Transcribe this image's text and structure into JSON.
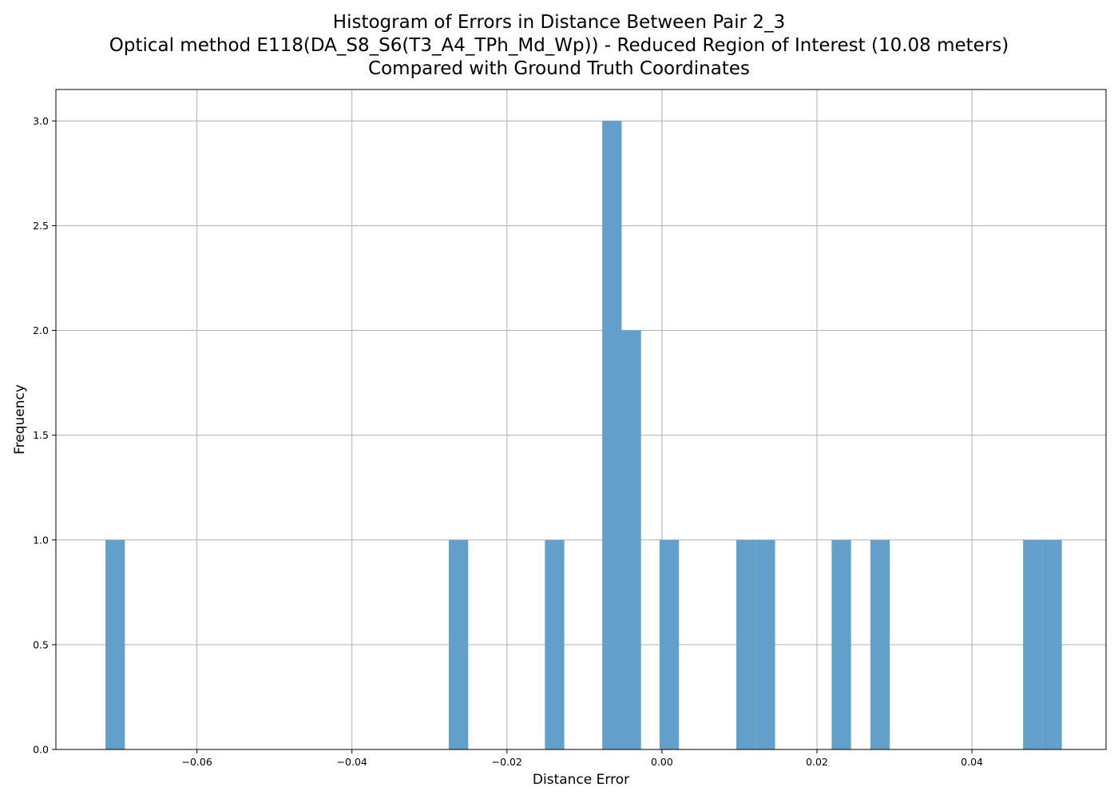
{
  "chart_data": {
    "type": "bar",
    "title_lines": [
      "Histogram of Errors in Distance Between Pair 2_3",
      "Optical method E118(DA_S8_S6(T3_A4_TPh_Md_Wp)) - Reduced Region of Interest (10.08 meters)",
      "Compared with Ground Truth Coordinates"
    ],
    "xlabel": "Distance Error",
    "ylabel": "Frequency",
    "xlim": [
      -0.0782,
      0.0573
    ],
    "ylim": [
      0,
      3.15
    ],
    "x_ticks": [
      -0.06,
      -0.04,
      -0.02,
      0.0,
      0.02,
      0.04
    ],
    "x_tick_labels": [
      "−0.06",
      "−0.04",
      "−0.02",
      "0.00",
      "0.02",
      "0.04"
    ],
    "y_ticks": [
      0.0,
      0.5,
      1.0,
      1.5,
      2.0,
      2.5,
      3.0
    ],
    "y_tick_labels": [
      "0.0",
      "0.5",
      "1.0",
      "1.5",
      "2.0",
      "2.5",
      "3.0"
    ],
    "grid": true,
    "bar_color": "#629fca",
    "bins": [
      {
        "x0": -0.0718,
        "x1": -0.0693,
        "count": 1
      },
      {
        "x0": -0.0275,
        "x1": -0.025,
        "count": 1
      },
      {
        "x0": -0.0151,
        "x1": -0.0126,
        "count": 1
      },
      {
        "x0": -0.0077,
        "x1": -0.0052,
        "count": 3
      },
      {
        "x0": -0.0052,
        "x1": -0.0027,
        "count": 2
      },
      {
        "x0": -0.0003,
        "x1": 0.0022,
        "count": 1
      },
      {
        "x0": 0.0096,
        "x1": 0.0121,
        "count": 1
      },
      {
        "x0": 0.0121,
        "x1": 0.0146,
        "count": 1
      },
      {
        "x0": 0.0219,
        "x1": 0.0244,
        "count": 1
      },
      {
        "x0": 0.0269,
        "x1": 0.0294,
        "count": 1
      },
      {
        "x0": 0.0466,
        "x1": 0.0491,
        "count": 1
      },
      {
        "x0": 0.0491,
        "x1": 0.0516,
        "count": 1
      }
    ]
  }
}
